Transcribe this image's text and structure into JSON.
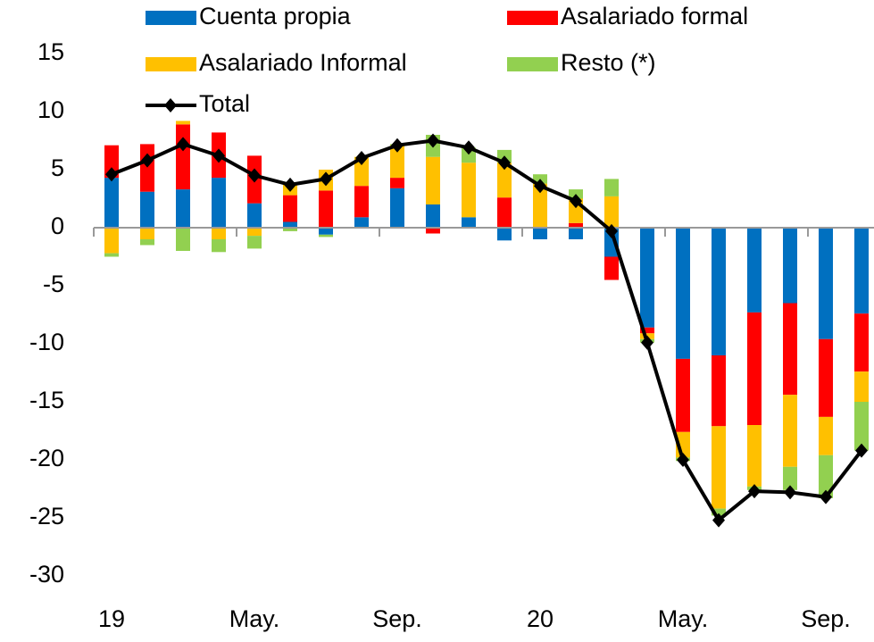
{
  "chart_data": {
    "type": "bar+line",
    "categories": [
      "19",
      null,
      null,
      null,
      "May.",
      null,
      null,
      null,
      "Sep.",
      null,
      null,
      null,
      "20",
      null,
      null,
      null,
      "May.",
      null,
      null,
      null,
      "Sep.",
      null
    ],
    "series": [
      {
        "name": "Cuenta propia",
        "color": "#0070c0",
        "type": "bar",
        "values": [
          4.3,
          3.1,
          3.3,
          4.3,
          2.1,
          0.5,
          -0.6,
          0.9,
          3.4,
          2.0,
          0.9,
          -1.1,
          -1.0,
          -1.0,
          -2.5,
          -8.6,
          -11.3,
          -11.0,
          -7.3,
          -6.5,
          -9.6,
          -7.4
        ]
      },
      {
        "name": "Asalariado formal",
        "color": "#ff0000",
        "type": "bar",
        "values": [
          2.8,
          4.1,
          5.6,
          3.9,
          4.1,
          2.3,
          3.2,
          2.7,
          0.9,
          -0.5,
          0,
          2.6,
          0,
          0.4,
          -2.0,
          -0.5,
          -6.3,
          -6.1,
          -9.7,
          -7.9,
          -6.7,
          -5.0
        ]
      },
      {
        "name": "Asalariado Informal",
        "color": "#ffc000",
        "type": "bar",
        "values": [
          -2.2,
          -1.0,
          0.3,
          -1.0,
          -0.7,
          0.9,
          1.8,
          2.5,
          2.8,
          4.1,
          4.7,
          3.0,
          3.8,
          2.1,
          2.7,
          -0.5,
          -2.2,
          -7.1,
          -5.3,
          -6.2,
          -3.3,
          -2.6
        ]
      },
      {
        "name": "Resto (*)",
        "color": "#92d050",
        "type": "bar",
        "values": [
          -0.3,
          -0.5,
          -2.0,
          -1.1,
          -1.1,
          -0.3,
          -0.2,
          0,
          0.1,
          1.9,
          1.3,
          1.1,
          0.8,
          0.8,
          1.5,
          -0.3,
          -0.3,
          -0.6,
          -0.3,
          -2.0,
          -3.7,
          -4.2
        ]
      },
      {
        "name": "Total",
        "color": "#000000",
        "type": "line",
        "values": [
          4.6,
          5.8,
          7.2,
          6.2,
          4.5,
          3.7,
          4.2,
          6.0,
          7.1,
          7.5,
          6.9,
          5.6,
          3.6,
          2.3,
          -0.3,
          -9.9,
          -20.0,
          -25.2,
          -22.7,
          -22.8,
          -23.2,
          -19.2
        ]
      }
    ],
    "ylim": [
      -30,
      15
    ],
    "yticks": [
      -30,
      -25,
      -20,
      -15,
      -10,
      -5,
      0,
      5,
      10,
      15
    ]
  }
}
